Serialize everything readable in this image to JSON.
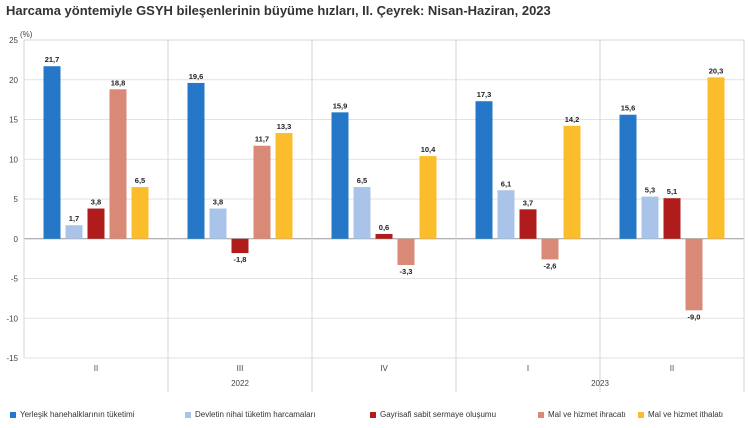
{
  "chart_data": {
    "type": "bar",
    "title": "Harcama yöntemiyle GSYH bileşenlerinin büyüme hızları, II. Çeyrek: Nisan-Haziran, 2023",
    "unit_label": "(%)",
    "ylim": [
      -15,
      25
    ],
    "yticks": [
      25,
      20,
      15,
      10,
      5,
      0,
      -5,
      -10,
      -15
    ],
    "grid": true,
    "legend_position": "bottom",
    "categories": [
      "II",
      "III",
      "IV",
      "I",
      "II"
    ],
    "year_labels": [
      "2022",
      "2023"
    ],
    "series": [
      {
        "name": "Yerleşik hanehalklarının tüketimi",
        "color": "#2478c7",
        "values": [
          21.7,
          19.6,
          15.9,
          17.3,
          15.6
        ],
        "labels": [
          "21,7",
          "19,6",
          "15,9",
          "17,3",
          "15,6"
        ]
      },
      {
        "name": "Devletin nihai tüketim harcamaları",
        "color": "#a9c4e8",
        "values": [
          1.7,
          3.8,
          6.5,
          6.1,
          5.3
        ],
        "labels": [
          "1,7",
          "3,8",
          "6,5",
          "6,1",
          "5,3"
        ]
      },
      {
        "name": "Gayrisafi sabit sermaye oluşumu",
        "color": "#b01c1c",
        "values": [
          3.8,
          -1.8,
          0.6,
          3.7,
          5.1
        ],
        "labels": [
          "3,8",
          "-1,8",
          "0,6",
          "3,7",
          "5,1"
        ]
      },
      {
        "name": "Mal ve hizmet ihracatı",
        "color": "#d98a76",
        "values": [
          18.8,
          11.7,
          -3.3,
          -2.6,
          -9.0
        ],
        "labels": [
          "18,8",
          "11,7",
          "-3,3",
          "-2,6",
          "-9,0"
        ]
      },
      {
        "name": "Mal ve hizmet ithalatı",
        "color": "#fbbd2c",
        "values": [
          6.5,
          13.3,
          10.4,
          14.2,
          20.3
        ],
        "labels": [
          "6,5",
          "13,3",
          "10,4",
          "14,2",
          "20,3"
        ]
      }
    ]
  }
}
